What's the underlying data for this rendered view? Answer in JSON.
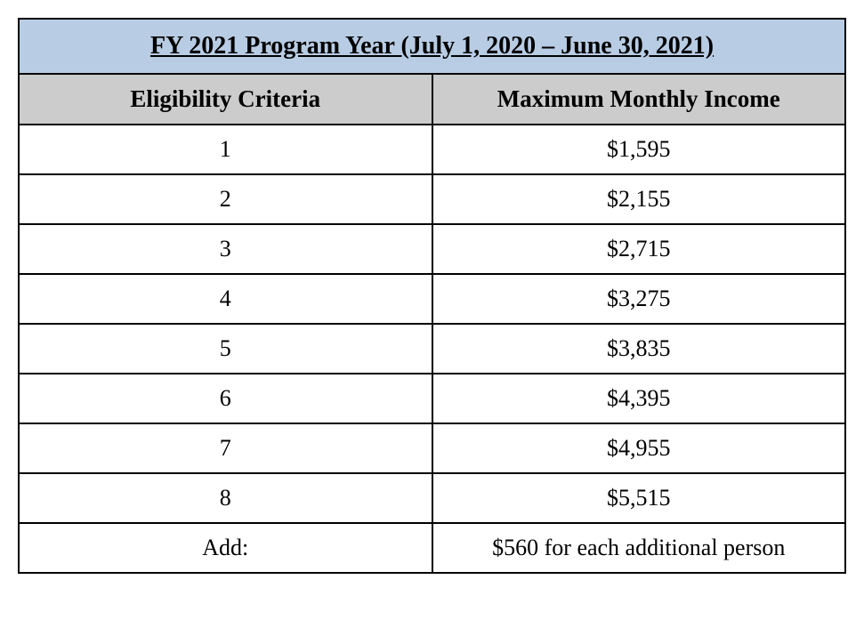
{
  "table": {
    "title": "FY 2021 Program Year (July 1, 2020 – June 30, 2021)",
    "columns": [
      "Eligibility Criteria",
      "Maximum Monthly Income"
    ],
    "rows": [
      [
        "1",
        "$1,595"
      ],
      [
        "2",
        "$2,155"
      ],
      [
        "3",
        "$2,715"
      ],
      [
        "4",
        "$3,275"
      ],
      [
        "5",
        "$3,835"
      ],
      [
        "6",
        "$4,395"
      ],
      [
        "7",
        "$4,955"
      ],
      [
        "8",
        "$5,515"
      ],
      [
        "Add:",
        "$560 for each additional person"
      ]
    ],
    "title_bg": "#b8cce4",
    "header_bg": "#cccccc",
    "row_bg": "#ffffff",
    "border_color": "#000000",
    "title_fontsize": 28,
    "header_fontsize": 27,
    "cell_fontsize": 26,
    "font_family": "Times New Roman"
  }
}
